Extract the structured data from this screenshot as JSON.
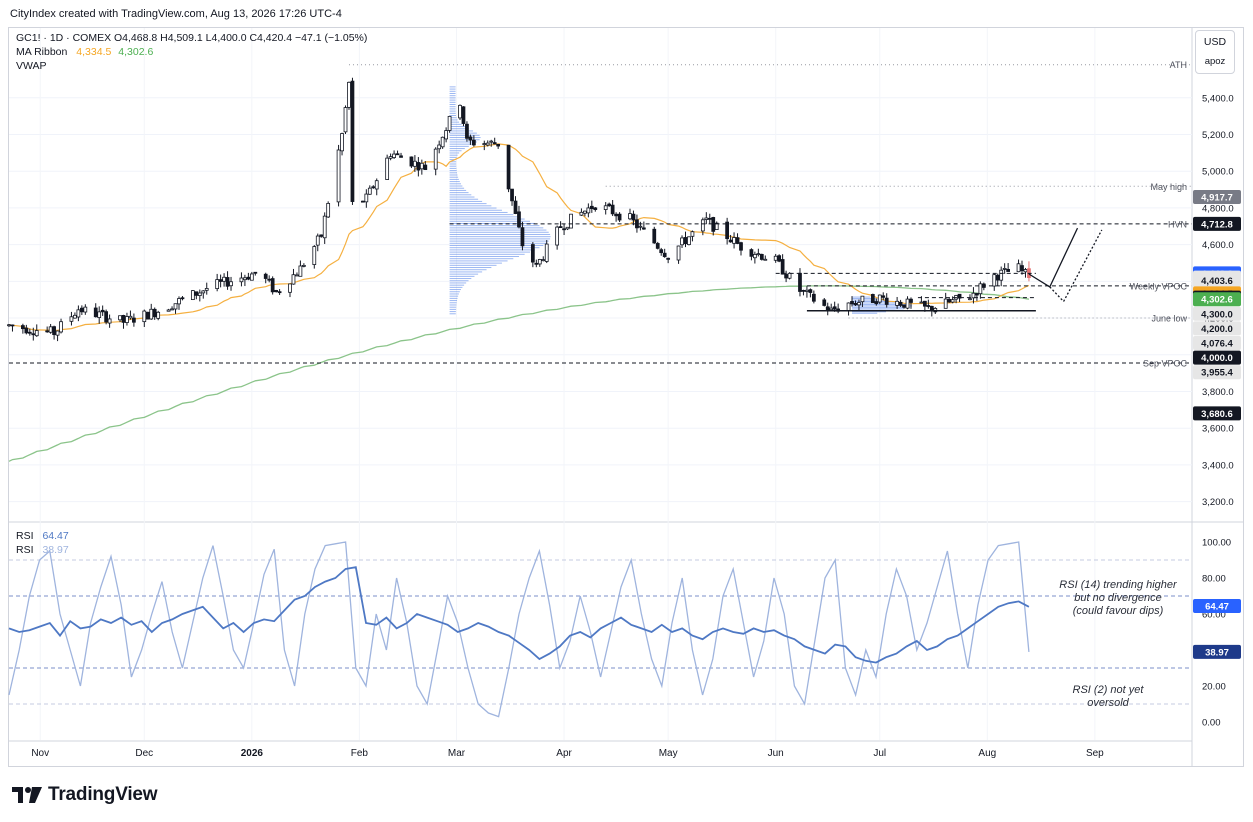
{
  "credit": "CityIndex created with TradingView.com, Aug 13, 2026 17:26 UTC-4",
  "legend": {
    "symbol_line": "GC1! · 1D · COMEX  O4,468.8  H4,509.1  L4,400.0  C4,420.4  −47.1 (−1.05%)",
    "ma_label": "MA Ribbon",
    "ma_value_1": "4,334.5",
    "ma_value_2": "4,302.6",
    "vwap_label": "VWAP",
    "rsi_label_1": "RSI",
    "rsi_value_1": "64.47",
    "rsi_label_2": "RSI",
    "rsi_value_2": "38.97"
  },
  "currency": {
    "code": "USD",
    "unit": "apoz"
  },
  "brand": {
    "name": "TradingView"
  },
  "colors": {
    "bull_candle": "#ffffff",
    "bear_candle": "#131722",
    "ma_fast": "#f5b041",
    "ma_slow": "#8bc48a",
    "profile": "#4a7be8",
    "rsi14": "#4e78c4",
    "rsi2": "#9fb4de",
    "marker_red": "#e57373"
  },
  "chart_data": [
    {
      "type": "candlestick",
      "symbol": "GC1!",
      "interval": "1D",
      "exchange": "COMEX",
      "ylim": [
        3100,
        5780
      ],
      "y_ticks": [
        3200,
        3400,
        3600,
        3800,
        4000,
        4200,
        4400,
        4600,
        4800,
        5000,
        5200,
        5400
      ],
      "y_tick_labels": [
        "3,200.0",
        "3,400.0",
        "3,600.0",
        "3,800.0",
        "4,000.0",
        "4,200.0",
        "4,400.0",
        "4,600.0",
        "4,800.0",
        "5,000.0",
        "5,200.0",
        "5,400.0"
      ],
      "x_labels": [
        "Nov",
        "Dec",
        "2026",
        "Feb",
        "Mar",
        "Apr",
        "May",
        "Jun",
        "Jul",
        "Aug",
        "Sep"
      ],
      "x_label_dates": [
        "2025-11-01",
        "2025-12-01",
        "2026-01-01",
        "2026-02-01",
        "2026-03-01",
        "2026-04-01",
        "2026-05-01",
        "2026-06-01",
        "2026-07-01",
        "2026-08-01",
        "2026-09-01"
      ],
      "x_range": [
        "2025-10-23",
        "2026-09-29"
      ],
      "ohlc_key_points": [
        {
          "date": "2025-10-23",
          "close": 4160
        },
        {
          "date": "2025-11-05",
          "close": 4120
        },
        {
          "date": "2025-11-12",
          "close": 4250
        },
        {
          "date": "2025-11-25",
          "close": 4180
        },
        {
          "date": "2025-12-05",
          "close": 4240
        },
        {
          "date": "2025-12-20",
          "close": 4370
        },
        {
          "date": "2026-01-03",
          "close": 4450
        },
        {
          "date": "2026-01-08",
          "close": 4340
        },
        {
          "date": "2026-01-15",
          "close": 4470
        },
        {
          "date": "2026-01-21",
          "close": 4650
        },
        {
          "date": "2026-01-27",
          "close": 5200
        },
        {
          "date": "2026-01-29",
          "close": 5480
        },
        {
          "date": "2026-01-30",
          "close": 4820
        },
        {
          "date": "2026-02-03",
          "close": 4850
        },
        {
          "date": "2026-02-10",
          "close": 5100
        },
        {
          "date": "2026-02-20",
          "close": 5020
        },
        {
          "date": "2026-03-02",
          "close": 5380
        },
        {
          "date": "2026-03-04",
          "close": 5160
        },
        {
          "date": "2026-03-13",
          "close": 5150
        },
        {
          "date": "2026-03-20",
          "close": 4600
        },
        {
          "date": "2026-03-24",
          "close": 4480
        },
        {
          "date": "2026-03-31",
          "close": 4700
        },
        {
          "date": "2026-04-10",
          "close": 4820
        },
        {
          "date": "2026-04-20",
          "close": 4740
        },
        {
          "date": "2026-05-01",
          "close": 4540
        },
        {
          "date": "2026-05-12",
          "close": 4730
        },
        {
          "date": "2026-05-22",
          "close": 4590
        },
        {
          "date": "2026-06-01",
          "close": 4510
        },
        {
          "date": "2026-06-08",
          "close": 4350
        },
        {
          "date": "2026-06-17",
          "close": 4240
        },
        {
          "date": "2026-06-22",
          "close": 4280
        },
        {
          "date": "2026-07-01",
          "close": 4310
        },
        {
          "date": "2026-07-15",
          "close": 4250
        },
        {
          "date": "2026-07-27",
          "close": 4320
        },
        {
          "date": "2026-08-03",
          "close": 4430
        },
        {
          "date": "2026-08-10",
          "close": 4470
        },
        {
          "date": "2026-08-13",
          "open": 4468.8,
          "high": 4509.1,
          "low": 4400.0,
          "close": 4420.4
        }
      ],
      "ma_ribbon": {
        "last_values": [
          4334.5,
          4302.6
        ]
      },
      "levels": [
        {
          "label": "ATH",
          "value": 5580,
          "style": "dotted"
        },
        {
          "label": "May high",
          "value": 4917.7,
          "style": "dotted"
        },
        {
          "label": "HVN",
          "value": 4712.8,
          "style": "dashed"
        },
        {
          "label": "",
          "value": 4443.2,
          "style": "dashed"
        },
        {
          "label": "Weekly VPOC",
          "value": 4375,
          "style": "dashed"
        },
        {
          "label": "",
          "value": 4311.2,
          "style": "dashed"
        },
        {
          "label": "",
          "value": 4240,
          "style": "solid"
        },
        {
          "label": "June low",
          "value": 4200,
          "style": "dotted"
        },
        {
          "label": "Sep VPOC",
          "value": 3955.4,
          "style": "dashed"
        }
      ],
      "price_labels": [
        {
          "text": "4,917.7",
          "bg": "#787b86",
          "color": "#ffffff"
        },
        {
          "text": "4,712.8",
          "bg": "#131722",
          "color": "#ffffff"
        },
        {
          "text": "4,443.2",
          "bg": "#2962ff",
          "color": "#ffffff"
        },
        {
          "text": "4,420.4",
          "bg": "#e6e6e6",
          "color": "#131722"
        },
        {
          "text": "4,403.6",
          "bg": "#e6e6e6",
          "color": "#131722"
        },
        {
          "text": "4,334.5",
          "bg": "#f5a623",
          "color": "#131722"
        },
        {
          "text": "4,311.2",
          "bg": "#131722",
          "color": "#ffffff"
        },
        {
          "text": "4,302.6",
          "bg": "#4caf50",
          "color": "#ffffff"
        },
        {
          "text": "4,300.0",
          "bg": "#e6e6e6",
          "color": "#131722"
        },
        {
          "text": "4,200.0",
          "bg": "#e6e6e6",
          "color": "#131722"
        },
        {
          "text": "4,076.4",
          "bg": "#e6e6e6",
          "color": "#131722"
        },
        {
          "text": "4,000.0",
          "bg": "#131722",
          "color": "#ffffff"
        },
        {
          "text": "3,955.4",
          "bg": "#e6e6e6",
          "color": "#131722"
        },
        {
          "text": "3,680.6",
          "bg": "#131722",
          "color": "#ffffff"
        }
      ]
    },
    {
      "type": "line",
      "title": "RSI",
      "ylim": [
        -10,
        110
      ],
      "y_ticks": [
        0,
        20,
        60,
        80,
        100
      ],
      "y_tick_labels": [
        "0.00",
        "20.00",
        "60.00",
        "80.00",
        "100.00"
      ],
      "bands": [
        10,
        30,
        70,
        90
      ],
      "series": [
        {
          "name": "RSI (14)",
          "last": 64.47,
          "values": [
            52,
            50,
            51,
            53,
            55,
            48,
            56,
            52,
            53,
            57,
            55,
            58,
            54,
            56,
            50,
            55,
            57,
            60,
            62,
            64,
            58,
            52,
            55,
            50,
            55,
            57,
            56,
            62,
            68,
            70,
            75,
            78,
            80,
            85,
            86,
            55,
            54,
            58,
            52,
            55,
            60,
            58,
            56,
            54,
            50,
            52,
            55,
            53,
            50,
            48,
            44,
            40,
            35,
            38,
            42,
            48,
            50,
            47,
            52,
            55,
            58,
            54,
            52,
            50,
            54,
            50,
            52,
            48,
            46,
            50,
            52,
            50,
            49,
            52,
            50,
            51,
            48,
            46,
            42,
            40,
            38,
            43,
            42,
            36,
            34,
            33,
            36,
            38,
            42,
            45,
            40,
            42,
            46,
            48,
            52,
            56,
            60,
            64,
            66,
            67,
            64
          ]
        },
        {
          "name": "RSI (2)",
          "last": 38.97,
          "values": [
            15,
            40,
            70,
            90,
            95,
            60,
            40,
            20,
            55,
            75,
            92,
            65,
            25,
            40,
            60,
            78,
            50,
            30,
            55,
            80,
            98,
            70,
            40,
            30,
            55,
            82,
            96,
            40,
            20,
            60,
            85,
            98,
            99,
            100,
            30,
            20,
            60,
            40,
            80,
            55,
            20,
            10,
            40,
            70,
            55,
            30,
            10,
            5,
            3,
            30,
            60,
            80,
            95,
            65,
            30,
            45,
            70,
            50,
            25,
            50,
            75,
            90,
            60,
            35,
            20,
            55,
            80,
            40,
            15,
            35,
            70,
            85,
            55,
            25,
            45,
            80,
            60,
            20,
            10,
            45,
            80,
            90,
            30,
            15,
            40,
            25,
            60,
            85,
            70,
            40,
            55,
            75,
            95,
            60,
            30,
            65,
            90,
            98,
            99,
            100,
            38.97
          ]
        }
      ],
      "annotations": [
        {
          "text": "RSI (14) trending higher\nbut no divergence\n(could favour dips)"
        },
        {
          "text": "RSI (2) not yet\noversold"
        }
      ]
    }
  ]
}
